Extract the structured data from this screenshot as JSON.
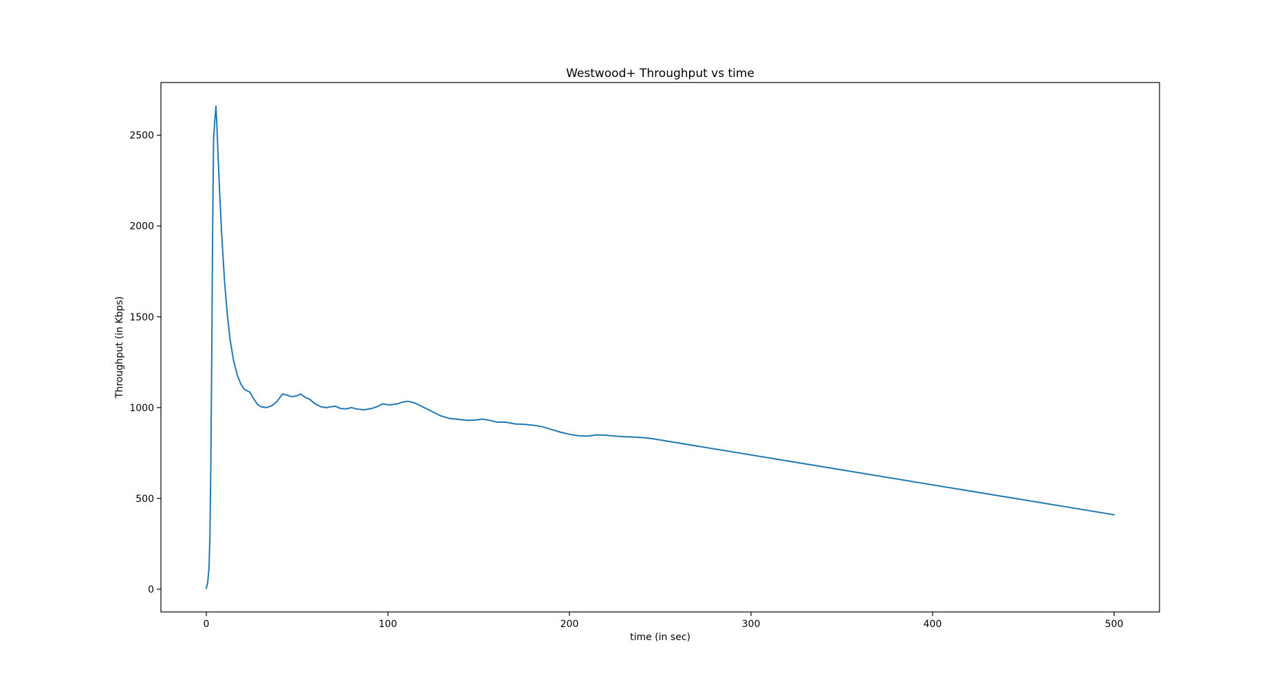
{
  "chart_data": {
    "type": "line",
    "title": "Westwood+ Throughput vs time",
    "xlabel": "time (in sec)",
    "ylabel": "Throughput (in Kbps)",
    "xlim": [
      -25,
      525
    ],
    "ylim": [
      -125,
      2790
    ],
    "x_ticks": [
      0,
      100,
      200,
      300,
      400,
      500
    ],
    "y_ticks": [
      0,
      500,
      1000,
      1500,
      2000,
      2500
    ],
    "grid": false,
    "legend": "none",
    "series": [
      {
        "color": "#1f77b4",
        "points": [
          [
            0,
            5
          ],
          [
            0.8,
            40
          ],
          [
            1.5,
            120
          ],
          [
            2.0,
            300
          ],
          [
            2.5,
            700
          ],
          [
            3.0,
            1300
          ],
          [
            3.5,
            2000
          ],
          [
            4.0,
            2480
          ],
          [
            4.5,
            2560
          ],
          [
            5.0,
            2620
          ],
          [
            5.3,
            2660
          ],
          [
            5.8,
            2560
          ],
          [
            6.5,
            2380
          ],
          [
            7.5,
            2150
          ],
          [
            8.5,
            1950
          ],
          [
            10,
            1700
          ],
          [
            11.5,
            1520
          ],
          [
            13,
            1380
          ],
          [
            15,
            1260
          ],
          [
            17,
            1180
          ],
          [
            19,
            1130
          ],
          [
            21,
            1100
          ],
          [
            24,
            1085
          ],
          [
            26,
            1050
          ],
          [
            28,
            1020
          ],
          [
            30,
            1005
          ],
          [
            33,
            1000
          ],
          [
            36,
            1010
          ],
          [
            39,
            1035
          ],
          [
            42,
            1075
          ],
          [
            44,
            1070
          ],
          [
            47,
            1060
          ],
          [
            50,
            1065
          ],
          [
            52,
            1075
          ],
          [
            54,
            1060
          ],
          [
            57,
            1045
          ],
          [
            60,
            1020
          ],
          [
            63,
            1005
          ],
          [
            66,
            1000
          ],
          [
            69,
            1005
          ],
          [
            71,
            1008
          ],
          [
            74,
            995
          ],
          [
            77,
            993
          ],
          [
            80,
            1000
          ],
          [
            83,
            992
          ],
          [
            87,
            988
          ],
          [
            91,
            995
          ],
          [
            94,
            1005
          ],
          [
            97,
            1020
          ],
          [
            101,
            1015
          ],
          [
            105,
            1020
          ],
          [
            108,
            1030
          ],
          [
            111,
            1035
          ],
          [
            115,
            1025
          ],
          [
            119,
            1005
          ],
          [
            124,
            980
          ],
          [
            129,
            955
          ],
          [
            134,
            940
          ],
          [
            139,
            935
          ],
          [
            144,
            930
          ],
          [
            149,
            932
          ],
          [
            152,
            937
          ],
          [
            156,
            930
          ],
          [
            160,
            920
          ],
          [
            165,
            920
          ],
          [
            170,
            910
          ],
          [
            175,
            908
          ],
          [
            180,
            903
          ],
          [
            185,
            895
          ],
          [
            190,
            880
          ],
          [
            195,
            865
          ],
          [
            200,
            853
          ],
          [
            205,
            845
          ],
          [
            210,
            843
          ],
          [
            215,
            850
          ],
          [
            220,
            848
          ],
          [
            225,
            843
          ],
          [
            230,
            840
          ],
          [
            235,
            838
          ],
          [
            240,
            835
          ],
          [
            245,
            830
          ],
          [
            500,
            410
          ]
        ]
      }
    ]
  }
}
